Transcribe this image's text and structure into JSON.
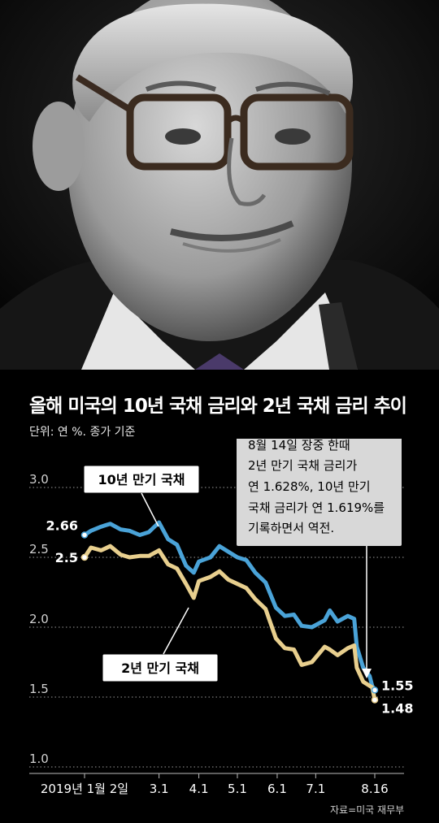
{
  "header": {
    "title": "올해 미국의 10년 국채 금리와 2년 국채 금리 추이",
    "unit_note": "단위: 연 %. 종가 기준"
  },
  "chart_data": {
    "type": "line",
    "title": "올해 미국의 10년 국채 금리와 2년 국채 금리 추이",
    "ylim": [
      1.0,
      3.0
    ],
    "yticks": [
      "3.0",
      "2.5",
      "2.0",
      "1.5",
      "1.0"
    ],
    "ytick_values": [
      3.0,
      2.5,
      2.0,
      1.5,
      1.0
    ],
    "xticks": [
      "2019년 1월 2일",
      "3.1",
      "4.1",
      "5.1",
      "6.1",
      "7.1",
      "8.16"
    ],
    "xtick_dates": [
      "2019-01-02",
      "2019-03-01",
      "2019-04-01",
      "2019-05-01",
      "2019-06-01",
      "2019-07-01",
      "2019-08-16"
    ],
    "grid": "horizontal dotted",
    "series": [
      {
        "name": "10년 만기 국채",
        "color": "#4aa3d8",
        "start_label": "2.66",
        "end_label": "1.55",
        "points": [
          [
            "2019-01-02",
            2.66
          ],
          [
            "2019-01-07",
            2.69
          ],
          [
            "2019-01-15",
            2.72
          ],
          [
            "2019-01-22",
            2.74
          ],
          [
            "2019-01-30",
            2.7
          ],
          [
            "2019-02-06",
            2.69
          ],
          [
            "2019-02-14",
            2.66
          ],
          [
            "2019-02-21",
            2.68
          ],
          [
            "2019-03-01",
            2.75
          ],
          [
            "2019-03-08",
            2.63
          ],
          [
            "2019-03-15",
            2.59
          ],
          [
            "2019-03-22",
            2.44
          ],
          [
            "2019-03-28",
            2.39
          ],
          [
            "2019-04-01",
            2.47
          ],
          [
            "2019-04-10",
            2.5
          ],
          [
            "2019-04-17",
            2.58
          ],
          [
            "2019-04-24",
            2.54
          ],
          [
            "2019-05-01",
            2.5
          ],
          [
            "2019-05-08",
            2.48
          ],
          [
            "2019-05-15",
            2.39
          ],
          [
            "2019-05-23",
            2.32
          ],
          [
            "2019-05-31",
            2.14
          ],
          [
            "2019-06-07",
            2.08
          ],
          [
            "2019-06-14",
            2.09
          ],
          [
            "2019-06-20",
            2.01
          ],
          [
            "2019-06-28",
            2.0
          ],
          [
            "2019-07-08",
            2.05
          ],
          [
            "2019-07-12",
            2.12
          ],
          [
            "2019-07-18",
            2.04
          ],
          [
            "2019-07-26",
            2.08
          ],
          [
            "2019-07-31",
            2.06
          ],
          [
            "2019-08-02",
            1.86
          ],
          [
            "2019-08-07",
            1.71
          ],
          [
            "2019-08-12",
            1.65
          ],
          [
            "2019-08-14",
            1.58
          ],
          [
            "2019-08-16",
            1.55
          ]
        ]
      },
      {
        "name": "2년 만기 국채",
        "color": "#e8cf8e",
        "start_label": "2.5",
        "end_label": "1.48",
        "points": [
          [
            "2019-01-02",
            2.5
          ],
          [
            "2019-01-07",
            2.57
          ],
          [
            "2019-01-15",
            2.55
          ],
          [
            "2019-01-22",
            2.58
          ],
          [
            "2019-01-30",
            2.52
          ],
          [
            "2019-02-06",
            2.5
          ],
          [
            "2019-02-14",
            2.51
          ],
          [
            "2019-02-21",
            2.51
          ],
          [
            "2019-03-01",
            2.55
          ],
          [
            "2019-03-08",
            2.45
          ],
          [
            "2019-03-15",
            2.42
          ],
          [
            "2019-03-22",
            2.31
          ],
          [
            "2019-03-28",
            2.21
          ],
          [
            "2019-04-01",
            2.33
          ],
          [
            "2019-04-10",
            2.36
          ],
          [
            "2019-04-17",
            2.4
          ],
          [
            "2019-04-24",
            2.34
          ],
          [
            "2019-05-01",
            2.31
          ],
          [
            "2019-05-08",
            2.28
          ],
          [
            "2019-05-15",
            2.2
          ],
          [
            "2019-05-23",
            2.13
          ],
          [
            "2019-05-31",
            1.92
          ],
          [
            "2019-06-07",
            1.85
          ],
          [
            "2019-06-14",
            1.84
          ],
          [
            "2019-06-20",
            1.73
          ],
          [
            "2019-06-28",
            1.75
          ],
          [
            "2019-07-08",
            1.86
          ],
          [
            "2019-07-12",
            1.84
          ],
          [
            "2019-07-18",
            1.8
          ],
          [
            "2019-07-26",
            1.85
          ],
          [
            "2019-07-31",
            1.87
          ],
          [
            "2019-08-02",
            1.71
          ],
          [
            "2019-08-07",
            1.61
          ],
          [
            "2019-08-12",
            1.58
          ],
          [
            "2019-08-14",
            1.57
          ],
          [
            "2019-08-16",
            1.48
          ]
        ]
      }
    ],
    "annotation": {
      "lines": [
        "8월 14일 장중 한때",
        "2년 만기 국채 금리가",
        "연 1.628%, 10년 만기",
        "국채 금리가 연 1.619%를",
        "기록하면서 역전."
      ]
    }
  },
  "source": "자료=미국 재무부"
}
